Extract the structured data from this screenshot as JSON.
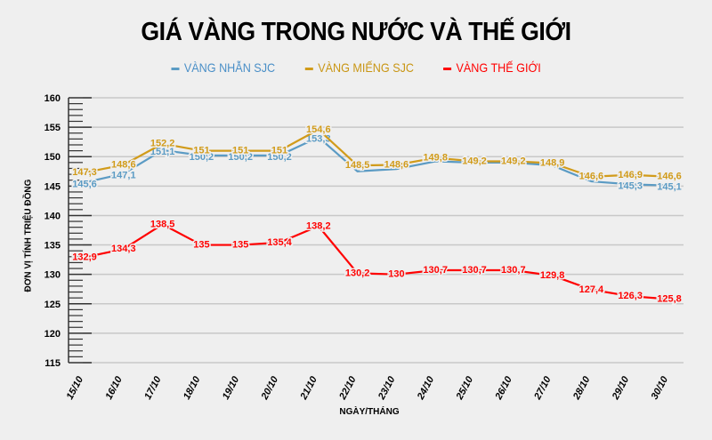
{
  "chart_data": {
    "type": "line",
    "title": "GIÁ VÀNG TRONG NƯỚC VÀ THẾ GIỚI",
    "xlabel": "NGÀY/THÁNG",
    "ylabel": "ĐƠN VỊ TÍNH TRIỆU ĐỒNG",
    "ylim": [
      115,
      160
    ],
    "yticks": [
      115,
      120,
      125,
      130,
      135,
      140,
      145,
      150,
      155,
      160
    ],
    "grid": true,
    "legend_position": "top",
    "categories": [
      "15/10",
      "16/10",
      "17/10",
      "18/10",
      "19/10",
      "20/10",
      "21/10",
      "22/10",
      "23/10",
      "24/10",
      "25/10",
      "26/10",
      "27/10",
      "28/10",
      "29/10",
      "30/10"
    ],
    "series": [
      {
        "name": "VÀNG NHẪN SJC",
        "color": "#5b9bc4",
        "values": [
          145.6,
          147.1,
          151.1,
          150.2,
          150.2,
          150.2,
          153.3,
          147.5,
          147.9,
          149.2,
          149.0,
          149.0,
          148.5,
          145.8,
          145.3,
          145.1
        ],
        "labels": [
          "145,6",
          "147,1",
          "151,1",
          "150,2",
          "150,2",
          "150,2",
          "153,3",
          "",
          "",
          "",
          "",
          "",
          "",
          "",
          "145,3",
          "145,1"
        ]
      },
      {
        "name": "VÀNG MIẾNG SJC",
        "color": "#d19b1a",
        "values": [
          147.3,
          148.6,
          152.2,
          151,
          151,
          151,
          154.6,
          148.5,
          148.6,
          149.8,
          149.2,
          149.2,
          148.9,
          146.6,
          146.9,
          146.6
        ],
        "labels": [
          "147,3",
          "148,6",
          "152,2",
          "151",
          "151",
          "151",
          "154,6",
          "148,5",
          "148,6",
          "149,8",
          "149,2",
          "149,2",
          "148,9",
          "146,6",
          "146,9",
          "146,6"
        ]
      },
      {
        "name": "VÀNG THẾ GIỚI",
        "color": "#ff0000",
        "values": [
          132.9,
          134.3,
          138.5,
          135,
          135,
          135.4,
          138.2,
          130.2,
          130,
          130.7,
          130.7,
          130.7,
          129.8,
          127.4,
          126.3,
          125.8
        ],
        "labels": [
          "132,9",
          "134,3",
          "138,5",
          "135",
          "135",
          "135,4",
          "138,2",
          "130,2",
          "130",
          "130,7",
          "130,7",
          "130,7",
          "129,8",
          "127,4",
          "126,3",
          "125,8"
        ]
      }
    ]
  }
}
